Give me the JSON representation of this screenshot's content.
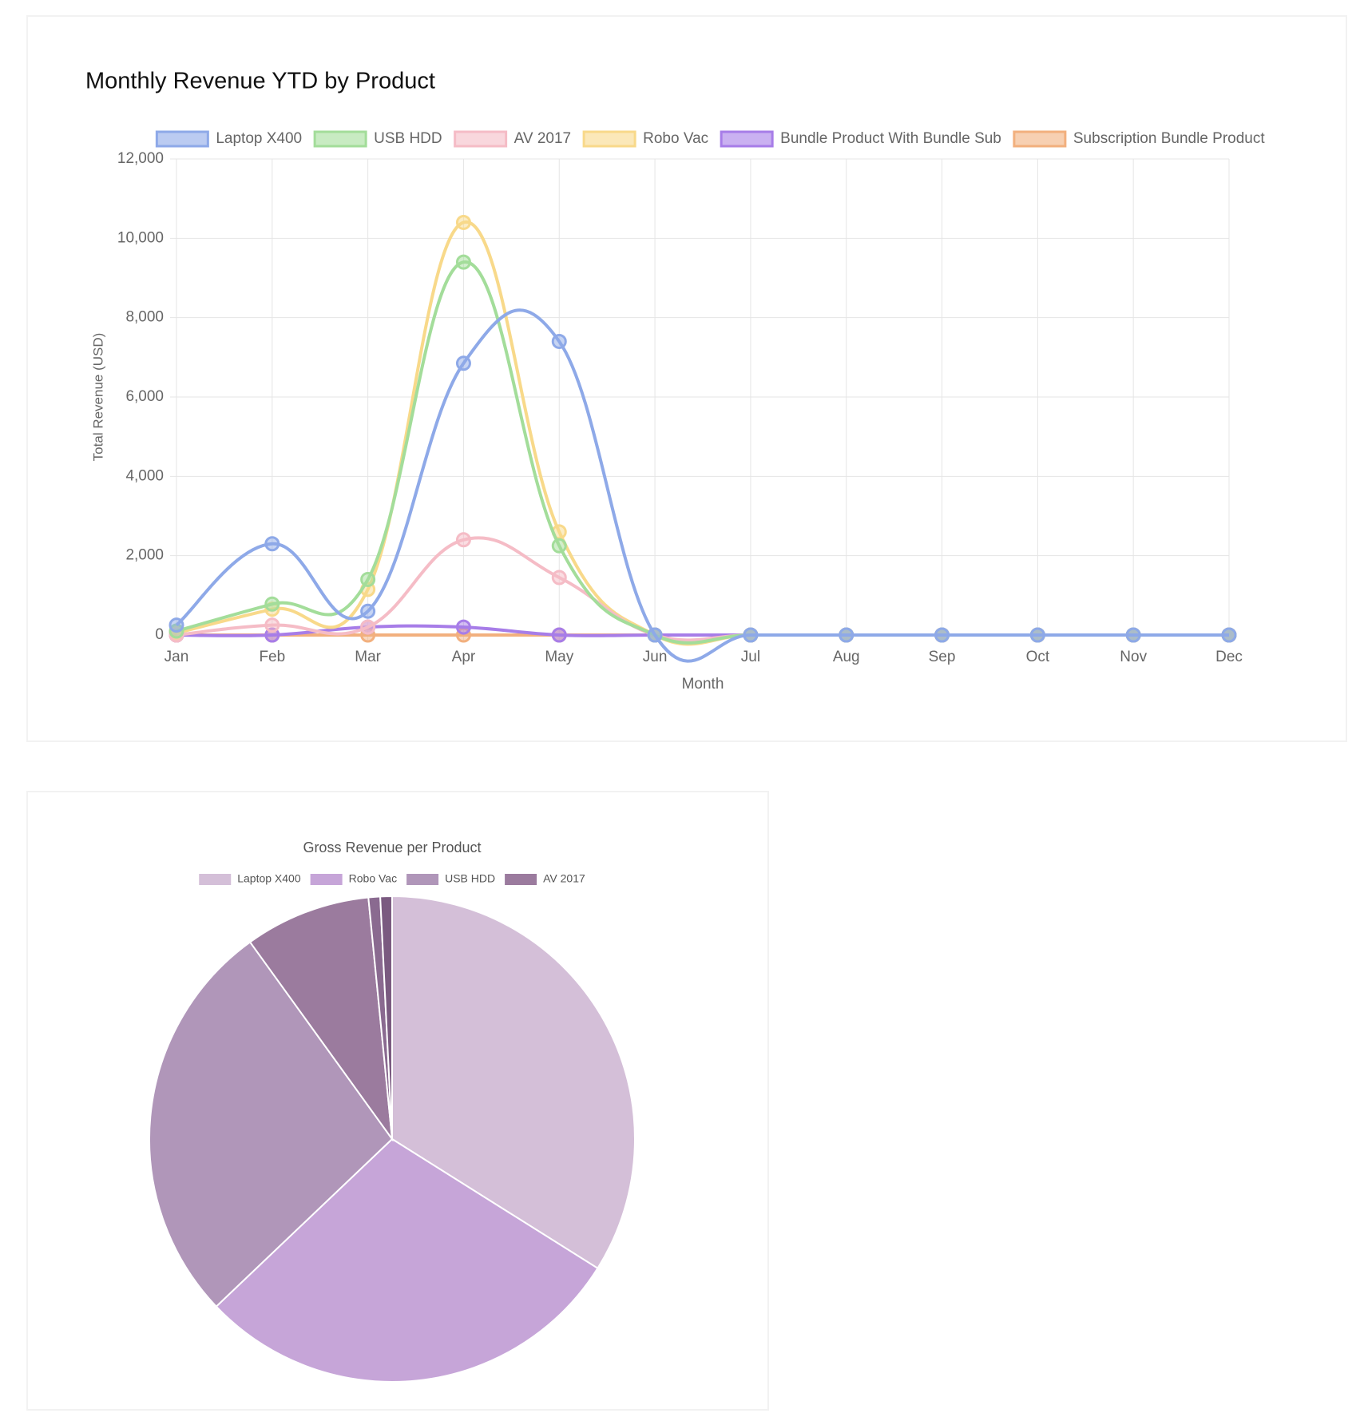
{
  "chart_data": [
    {
      "type": "line",
      "title": "Monthly Revenue YTD by Product",
      "x_label": "Month",
      "y_label": "Total Revenue (USD)",
      "categories": [
        "Jan",
        "Feb",
        "Mar",
        "Apr",
        "May",
        "Jun",
        "Jul",
        "Aug",
        "Sep",
        "Oct",
        "Nov",
        "Dec"
      ],
      "series": [
        {
          "name": "Laptop X400",
          "color": "#8ea9e8",
          "values": [
            250,
            2300,
            600,
            6850,
            7400,
            0,
            0,
            0,
            0,
            0,
            0,
            0
          ]
        },
        {
          "name": "USB HDD",
          "color": "#a3dd9a",
          "values": [
            100,
            780,
            1400,
            9400,
            2250,
            0,
            0,
            0,
            0,
            0,
            0,
            0
          ]
        },
        {
          "name": "AV 2017",
          "color": "#f5bcc6",
          "values": [
            0,
            250,
            200,
            2400,
            1450,
            0,
            0,
            0,
            0,
            0,
            0,
            0
          ]
        },
        {
          "name": "Robo Vac",
          "color": "#f8d98a",
          "values": [
            50,
            650,
            1150,
            10400,
            2600,
            0,
            0,
            0,
            0,
            0,
            0,
            0
          ]
        },
        {
          "name": "Bundle Product With Bundle Sub",
          "color": "#a77de8",
          "values": [
            0,
            0,
            200,
            200,
            0,
            0,
            0,
            0,
            0,
            0,
            0,
            0
          ]
        },
        {
          "name": "Subscription Bundle Product",
          "color": "#f2b07e",
          "values": [
            0,
            0,
            0,
            0,
            0,
            0,
            0,
            0,
            0,
            0,
            0,
            0
          ]
        }
      ],
      "ylim": [
        0,
        12000
      ],
      "yticks": [
        0,
        {
          "value": 2000,
          "label": "2,000"
        },
        {
          "value": 4000,
          "label": "4,000"
        },
        {
          "value": 6000,
          "label": "6,000"
        },
        {
          "value": 8000,
          "label": "8,000"
        },
        {
          "value": 10000,
          "label": "10,000"
        },
        {
          "value": 12000,
          "label": "12,000"
        }
      ],
      "grid": true,
      "legend": "top"
    },
    {
      "type": "pie",
      "title": "Gross Revenue per Product",
      "categories": [
        "Laptop X400",
        "Robo Vac",
        "USB HDD",
        "AV 2017",
        null,
        null
      ],
      "values": [
        17400,
        14850,
        13930,
        4300,
        400,
        400
      ],
      "colors": [
        "#d4bfd8",
        "#c6a5d8",
        "#b096b9",
        "#9b7b9e",
        "#8a6a90",
        "#7a5a80"
      ],
      "legend": "top"
    }
  ]
}
